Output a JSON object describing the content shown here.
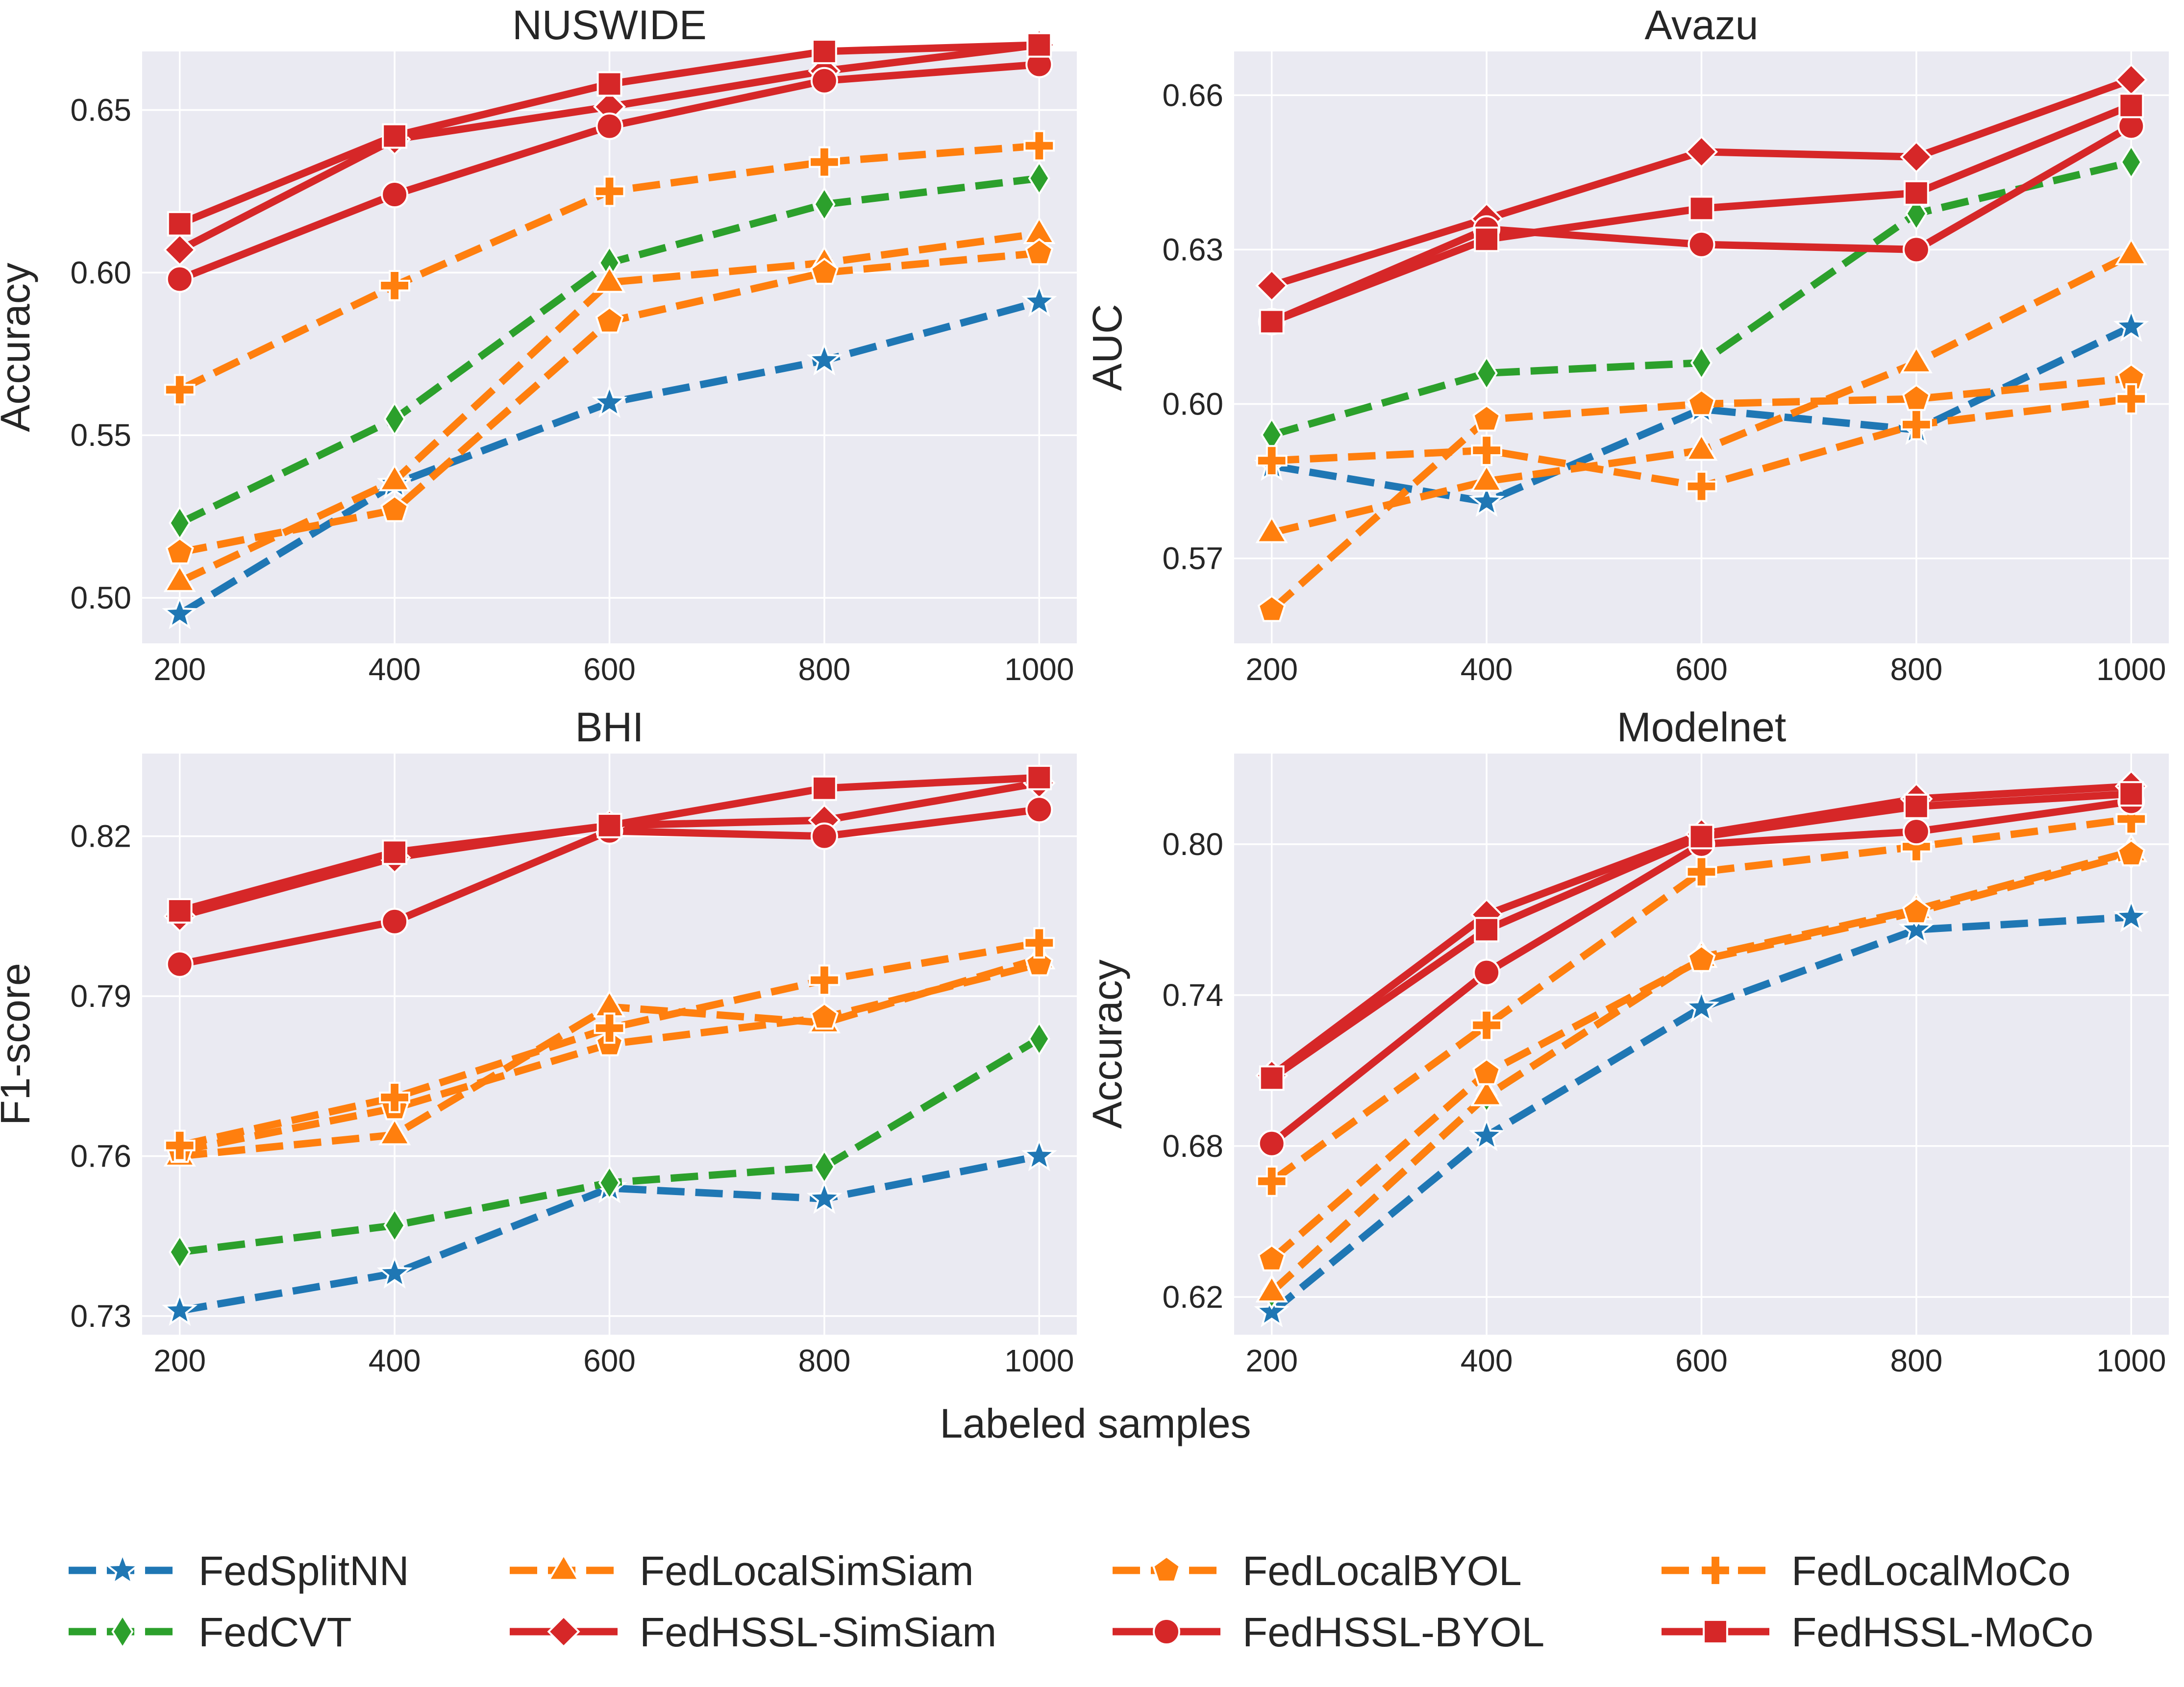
{
  "chart_data": {
    "type": "line",
    "figure_xlabel": "Labeled samples",
    "x": [
      200,
      400,
      600,
      800,
      1000
    ],
    "series_styles": {
      "FedSplitNN": {
        "color": "#1f77b4",
        "dash": true,
        "marker": "star"
      },
      "FedCVT": {
        "color": "#2ca02c",
        "dash": true,
        "marker": "thin_diamond"
      },
      "FedLocalSimSiam": {
        "color": "#ff7f0e",
        "dash": true,
        "marker": "triangle"
      },
      "FedHSSL-SimSiam": {
        "color": "#d62728",
        "dash": false,
        "marker": "diamond"
      },
      "FedLocalBYOL": {
        "color": "#ff7f0e",
        "dash": true,
        "marker": "pentagon"
      },
      "FedHSSL-BYOL": {
        "color": "#d62728",
        "dash": false,
        "marker": "circle"
      },
      "FedLocalMoCo": {
        "color": "#ff7f0e",
        "dash": true,
        "marker": "plus"
      },
      "FedHSSL-MoCo": {
        "color": "#d62728",
        "dash": false,
        "marker": "square"
      }
    },
    "legend": {
      "placement": "bottom",
      "ncol": 4,
      "entries": [
        "FedSplitNN",
        "FedCVT",
        "FedLocalSimSiam",
        "FedHSSL-SimSiam",
        "FedLocalBYOL",
        "FedHSSL-BYOL",
        "FedLocalMoCo",
        "FedHSSL-MoCo"
      ]
    },
    "panels": [
      {
        "title": "NUSWIDE",
        "ylabel": "Accuracy",
        "ylim": [
          0.486,
          0.668
        ],
        "yticks": [
          0.5,
          0.55,
          0.6,
          0.65
        ],
        "ytick_labels": [
          "0.50",
          "0.55",
          "0.60",
          "0.65"
        ],
        "xticks": [
          200,
          400,
          600,
          800,
          1000
        ],
        "xtick_labels": [
          "200",
          "400",
          "600",
          "800",
          "1000"
        ],
        "series": [
          {
            "name": "FedSplitNN",
            "values": [
              0.495,
              0.535,
              0.56,
              0.573,
              0.591
            ]
          },
          {
            "name": "FedCVT",
            "values": [
              0.523,
              0.555,
              0.603,
              0.621,
              0.629
            ]
          },
          {
            "name": "FedLocalSimSiam",
            "values": [
              0.505,
              0.536,
              0.597,
              0.603,
              0.612
            ]
          },
          {
            "name": "FedLocalBYOL",
            "values": [
              0.514,
              0.527,
              0.585,
              0.6,
              0.606
            ]
          },
          {
            "name": "FedLocalMoCo",
            "values": [
              0.564,
              0.596,
              0.625,
              0.634,
              0.639
            ]
          },
          {
            "name": "FedHSSL-SimSiam",
            "values": [
              0.607,
              0.641,
              0.651,
              0.662,
              0.67
            ]
          },
          {
            "name": "FedHSSL-BYOL",
            "values": [
              0.598,
              0.624,
              0.645,
              0.659,
              0.664
            ]
          },
          {
            "name": "FedHSSL-MoCo",
            "values": [
              0.615,
              0.642,
              0.658,
              0.668,
              0.67
            ]
          }
        ]
      },
      {
        "title": "Avazu",
        "ylabel": "AUC",
        "ylim": [
          0.5535,
          0.6685
        ],
        "yticks": [
          0.57,
          0.6,
          0.63,
          0.66
        ],
        "ytick_labels": [
          "0.57",
          "0.60",
          "0.63",
          "0.66"
        ],
        "xticks": [
          200,
          400,
          600,
          800,
          1000
        ],
        "xtick_labels": [
          "200",
          "400",
          "600",
          "800",
          "1000"
        ],
        "series": [
          {
            "name": "FedSplitNN",
            "values": [
              0.588,
              0.581,
              0.599,
              0.595,
              0.615
            ]
          },
          {
            "name": "FedCVT",
            "values": [
              0.594,
              0.606,
              0.608,
              0.637,
              0.647
            ]
          },
          {
            "name": "FedLocalSimSiam",
            "values": [
              0.575,
              0.585,
              0.591,
              0.608,
              0.629
            ]
          },
          {
            "name": "FedLocalBYOL",
            "values": [
              0.56,
              0.597,
              0.6,
              0.601,
              0.605
            ]
          },
          {
            "name": "FedLocalMoCo",
            "values": [
              0.589,
              0.591,
              0.584,
              0.596,
              0.601
            ]
          },
          {
            "name": "FedHSSL-SimSiam",
            "values": [
              0.623,
              0.636,
              0.649,
              0.648,
              0.663
            ]
          },
          {
            "name": "FedHSSL-BYOL",
            "values": [
              0.616,
              0.634,
              0.631,
              0.63,
              0.654
            ]
          },
          {
            "name": "FedHSSL-MoCo",
            "values": [
              0.616,
              0.632,
              0.638,
              0.641,
              0.658
            ]
          }
        ]
      },
      {
        "title": "BHI",
        "ylabel": "F1-score",
        "ylim": [
          0.7265,
          0.8355
        ],
        "yticks": [
          0.73,
          0.76,
          0.79,
          0.82
        ],
        "ytick_labels": [
          "0.73",
          "0.76",
          "0.79",
          "0.82"
        ],
        "xticks": [
          200,
          400,
          600,
          800,
          1000
        ],
        "xtick_labels": [
          "200",
          "400",
          "600",
          "800",
          "1000"
        ],
        "series": [
          {
            "name": "FedSplitNN",
            "values": [
              0.731,
              0.738,
              0.754,
              0.752,
              0.76
            ]
          },
          {
            "name": "FedCVT",
            "values": [
              0.742,
              0.747,
              0.755,
              0.758,
              0.782
            ]
          },
          {
            "name": "FedLocalSimSiam",
            "values": [
              0.76,
              0.764,
              0.788,
              0.785,
              0.797
            ]
          },
          {
            "name": "FedLocalBYOL",
            "values": [
              0.761,
              0.769,
              0.781,
              0.786,
              0.796
            ]
          },
          {
            "name": "FedLocalMoCo",
            "values": [
              0.762,
              0.771,
              0.784,
              0.793,
              0.8
            ]
          },
          {
            "name": "FedHSSL-SimSiam",
            "values": [
              0.805,
              0.816,
              0.822,
              0.823,
              0.83
            ]
          },
          {
            "name": "FedHSSL-BYOL",
            "values": [
              0.796,
              0.804,
              0.821,
              0.82,
              0.825
            ]
          },
          {
            "name": "FedHSSL-MoCo",
            "values": [
              0.806,
              0.817,
              0.822,
              0.829,
              0.831
            ]
          }
        ]
      },
      {
        "title": "Modelnet",
        "ylabel": "Accuracy",
        "ylim": [
          0.605,
          0.836
        ],
        "yticks": [
          0.62,
          0.68,
          0.74,
          0.8
        ],
        "ytick_labels": [
          "0.62",
          "0.68",
          "0.74",
          "0.80"
        ],
        "xticks": [
          200,
          400,
          600,
          800,
          1000
        ],
        "xtick_labels": [
          "200",
          "400",
          "600",
          "800",
          "1000"
        ],
        "series": [
          {
            "name": "FedSplitNN",
            "values": [
              0.614,
              0.684,
              0.735,
              0.766,
              0.771
            ]
          },
          {
            "name": "FedCVT",
            "values": [
              0.622,
              0.7,
              0.755,
              0.774,
              0.797
            ]
          },
          {
            "name": "FedLocalSimSiam",
            "values": [
              0.622,
              0.7,
              0.755,
              0.774,
              0.797
            ]
          },
          {
            "name": "FedLocalBYOL",
            "values": [
              0.635,
              0.709,
              0.754,
              0.773,
              0.796
            ]
          },
          {
            "name": "FedLocalMoCo",
            "values": [
              0.666,
              0.728,
              0.789,
              0.799,
              0.81
            ]
          },
          {
            "name": "FedHSSL-SimSiam",
            "values": [
              0.708,
              0.772,
              0.804,
              0.818,
              0.823
            ]
          },
          {
            "name": "FedHSSL-BYOL",
            "values": [
              0.681,
              0.749,
              0.8,
              0.805,
              0.817
            ]
          },
          {
            "name": "FedHSSL-MoCo",
            "values": [
              0.707,
              0.766,
              0.803,
              0.815,
              0.82
            ]
          }
        ]
      }
    ]
  }
}
